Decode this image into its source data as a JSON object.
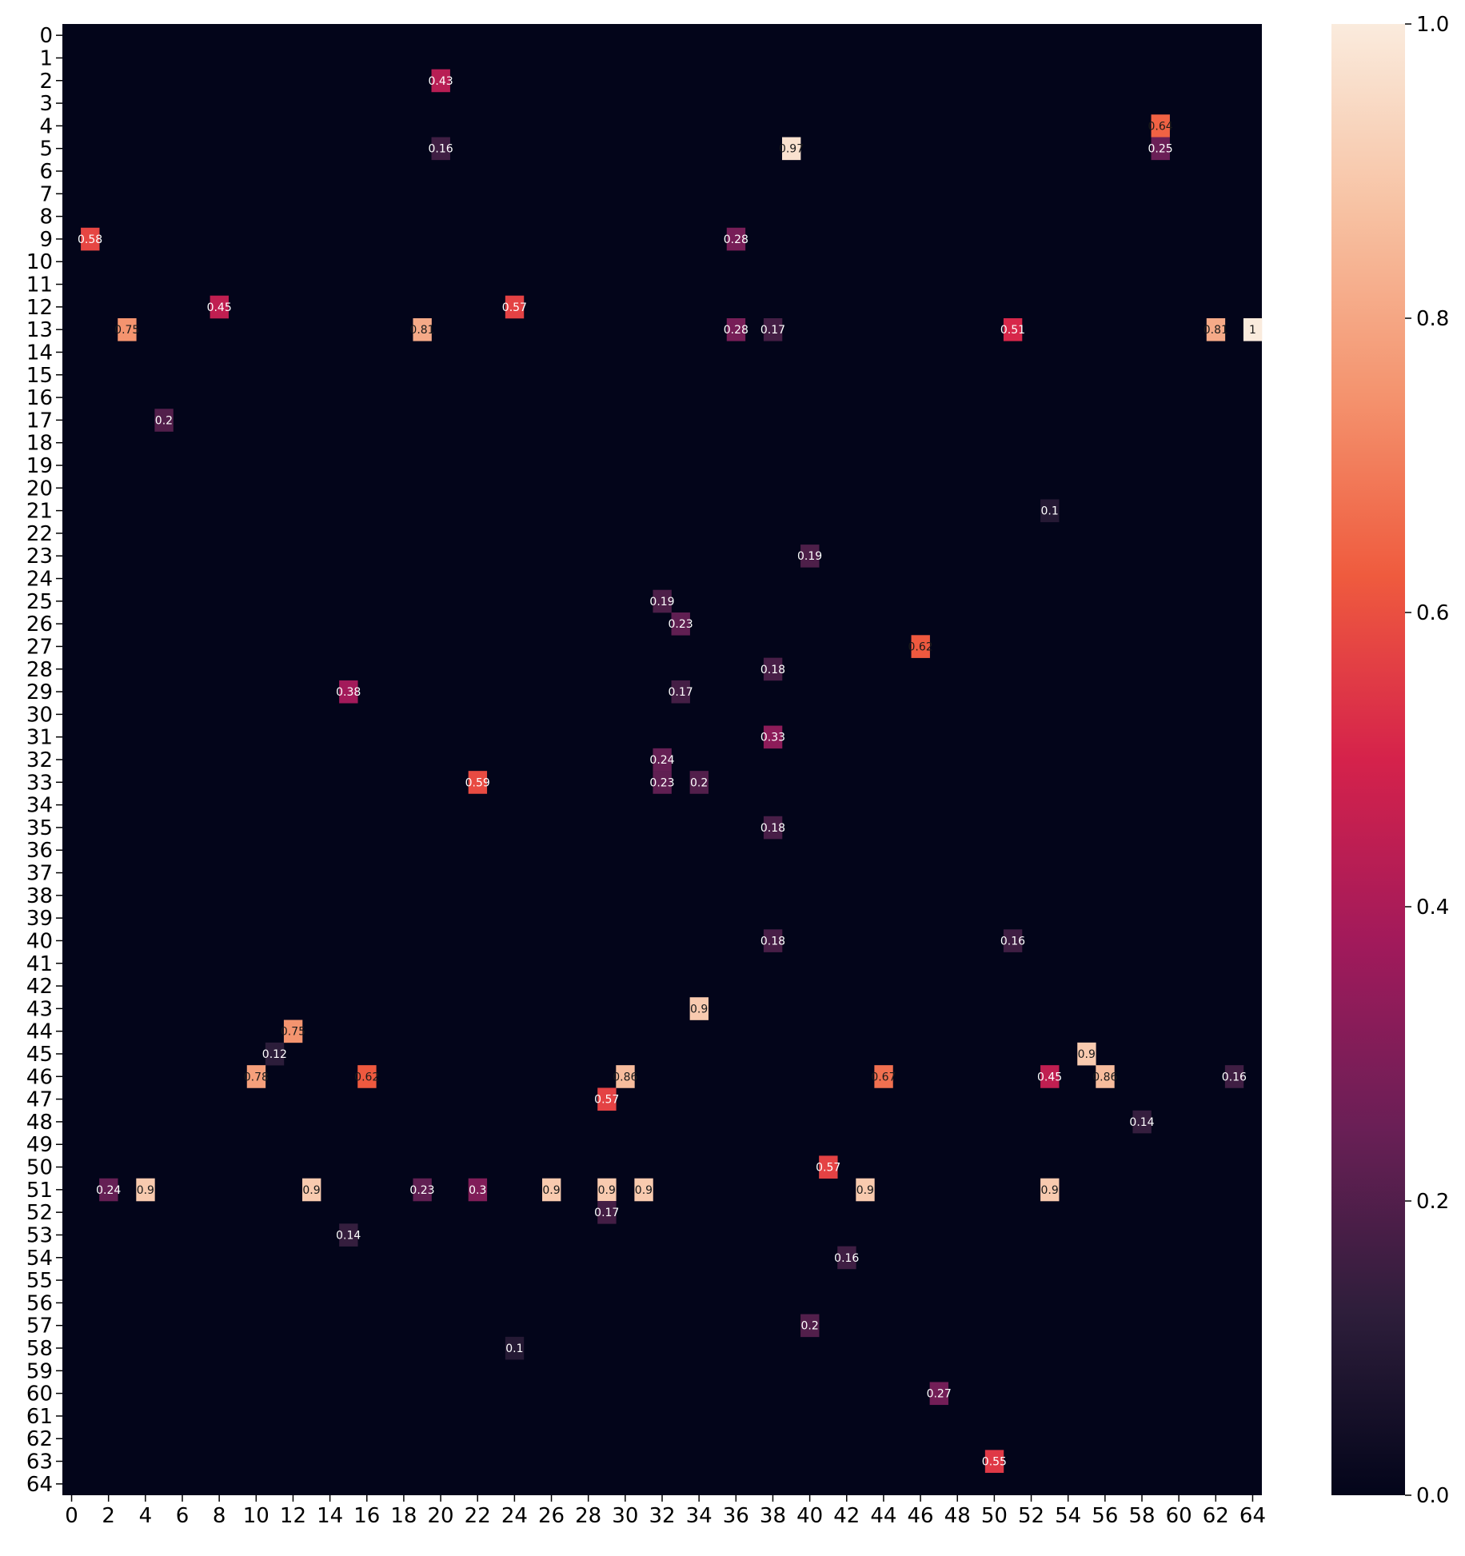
{
  "chart_data": {
    "type": "heatmap",
    "title": "",
    "xlabel": "",
    "ylabel": "",
    "rows": 65,
    "cols": 65,
    "x_tick_labels": [
      "0",
      "2",
      "4",
      "6",
      "8",
      "10",
      "12",
      "14",
      "16",
      "18",
      "20",
      "22",
      "24",
      "26",
      "28",
      "30",
      "32",
      "34",
      "36",
      "38",
      "40",
      "42",
      "44",
      "46",
      "48",
      "50",
      "52",
      "54",
      "56",
      "58",
      "60",
      "62",
      "64"
    ],
    "y_tick_labels": [
      "0",
      "1",
      "2",
      "3",
      "4",
      "5",
      "6",
      "7",
      "8",
      "9",
      "10",
      "11",
      "12",
      "13",
      "14",
      "15",
      "16",
      "17",
      "18",
      "19",
      "20",
      "21",
      "22",
      "23",
      "24",
      "25",
      "26",
      "27",
      "28",
      "29",
      "30",
      "31",
      "32",
      "33",
      "34",
      "35",
      "36",
      "37",
      "38",
      "39",
      "40",
      "41",
      "42",
      "43",
      "44",
      "45",
      "46",
      "47",
      "48",
      "49",
      "50",
      "51",
      "52",
      "53",
      "54",
      "55",
      "56",
      "57",
      "58",
      "59",
      "60",
      "61",
      "62",
      "63",
      "64"
    ],
    "colorbar": {
      "range": [
        0.0,
        1.0
      ],
      "ticks": [
        "0.0",
        "0.2",
        "0.4",
        "0.6",
        "0.8",
        "1.0"
      ],
      "colormap": "rocket",
      "stops": [
        "#03051a",
        "#2e1e3b",
        "#6a1f56",
        "#a11a5b",
        "#d5224b",
        "#ef5b3e",
        "#f4946f",
        "#f7c2a3",
        "#faebdd"
      ]
    },
    "annotated": true,
    "background_value": 0.0,
    "highlighted_cells": [
      {
        "row": 2,
        "col": 20,
        "value": 0.43
      },
      {
        "row": 4,
        "col": 59,
        "value": 0.64
      },
      {
        "row": 5,
        "col": 39,
        "value": 0.97
      },
      {
        "row": 5,
        "col": 59,
        "value": 0.25
      },
      {
        "row": 5,
        "col": 20,
        "value": 0.16
      },
      {
        "row": 9,
        "col": 1,
        "value": 0.58
      },
      {
        "row": 9,
        "col": 36,
        "value": 0.28
      },
      {
        "row": 12,
        "col": 24,
        "value": 0.57
      },
      {
        "row": 12,
        "col": 8,
        "value": 0.45
      },
      {
        "row": 13,
        "col": 3,
        "value": 0.75
      },
      {
        "row": 13,
        "col": 19,
        "value": 0.81
      },
      {
        "row": 13,
        "col": 36,
        "value": 0.28
      },
      {
        "row": 13,
        "col": 38,
        "value": 0.17
      },
      {
        "row": 13,
        "col": 51,
        "value": 0.51
      },
      {
        "row": 13,
        "col": 62,
        "value": 0.81
      },
      {
        "row": 13,
        "col": 64,
        "value": 1.0
      },
      {
        "row": 17,
        "col": 5,
        "value": 0.2
      },
      {
        "row": 21,
        "col": 53,
        "value": 0.1
      },
      {
        "row": 23,
        "col": 40,
        "value": 0.19
      },
      {
        "row": 25,
        "col": 32,
        "value": 0.19
      },
      {
        "row": 26,
        "col": 33,
        "value": 0.23
      },
      {
        "row": 27,
        "col": 46,
        "value": 0.62
      },
      {
        "row": 28,
        "col": 38,
        "value": 0.18
      },
      {
        "row": 29,
        "col": 15,
        "value": 0.38
      },
      {
        "row": 29,
        "col": 33,
        "value": 0.17
      },
      {
        "row": 31,
        "col": 38,
        "value": 0.33
      },
      {
        "row": 32,
        "col": 32,
        "value": 0.24
      },
      {
        "row": 33,
        "col": 22,
        "value": 0.59
      },
      {
        "row": 33,
        "col": 32,
        "value": 0.23
      },
      {
        "row": 33,
        "col": 34,
        "value": 0.2
      },
      {
        "row": 35,
        "col": 38,
        "value": 0.18
      },
      {
        "row": 40,
        "col": 38,
        "value": 0.18
      },
      {
        "row": 40,
        "col": 51,
        "value": 0.16
      },
      {
        "row": 43,
        "col": 34,
        "value": 0.9
      },
      {
        "row": 44,
        "col": 12,
        "value": 0.75
      },
      {
        "row": 45,
        "col": 11,
        "value": 0.12
      },
      {
        "row": 45,
        "col": 55,
        "value": 0.9
      },
      {
        "row": 46,
        "col": 10,
        "value": 0.78
      },
      {
        "row": 46,
        "col": 16,
        "value": 0.62
      },
      {
        "row": 46,
        "col": 30,
        "value": 0.86
      },
      {
        "row": 46,
        "col": 44,
        "value": 0.67
      },
      {
        "row": 46,
        "col": 53,
        "value": 0.45
      },
      {
        "row": 46,
        "col": 56,
        "value": 0.86
      },
      {
        "row": 46,
        "col": 63,
        "value": 0.16
      },
      {
        "row": 47,
        "col": 29,
        "value": 0.57
      },
      {
        "row": 48,
        "col": 58,
        "value": 0.14
      },
      {
        "row": 50,
        "col": 41,
        "value": 0.57
      },
      {
        "row": 51,
        "col": 4,
        "value": 0.9
      },
      {
        "row": 51,
        "col": 13,
        "value": 0.9
      },
      {
        "row": 51,
        "col": 26,
        "value": 0.9
      },
      {
        "row": 51,
        "col": 29,
        "value": 0.9
      },
      {
        "row": 51,
        "col": 31,
        "value": 0.9
      },
      {
        "row": 51,
        "col": 43,
        "value": 0.9
      },
      {
        "row": 51,
        "col": 53,
        "value": 0.9
      },
      {
        "row": 51,
        "col": 2,
        "value": 0.24
      },
      {
        "row": 51,
        "col": 19,
        "value": 0.23
      },
      {
        "row": 51,
        "col": 22,
        "value": 0.3
      },
      {
        "row": 52,
        "col": 29,
        "value": 0.17
      },
      {
        "row": 53,
        "col": 15,
        "value": 0.14
      },
      {
        "row": 54,
        "col": 42,
        "value": 0.16
      },
      {
        "row": 57,
        "col": 40,
        "value": 0.2
      },
      {
        "row": 58,
        "col": 24,
        "value": 0.1
      },
      {
        "row": 60,
        "col": 47,
        "value": 0.27
      },
      {
        "row": 63,
        "col": 50,
        "value": 0.55
      }
    ]
  }
}
